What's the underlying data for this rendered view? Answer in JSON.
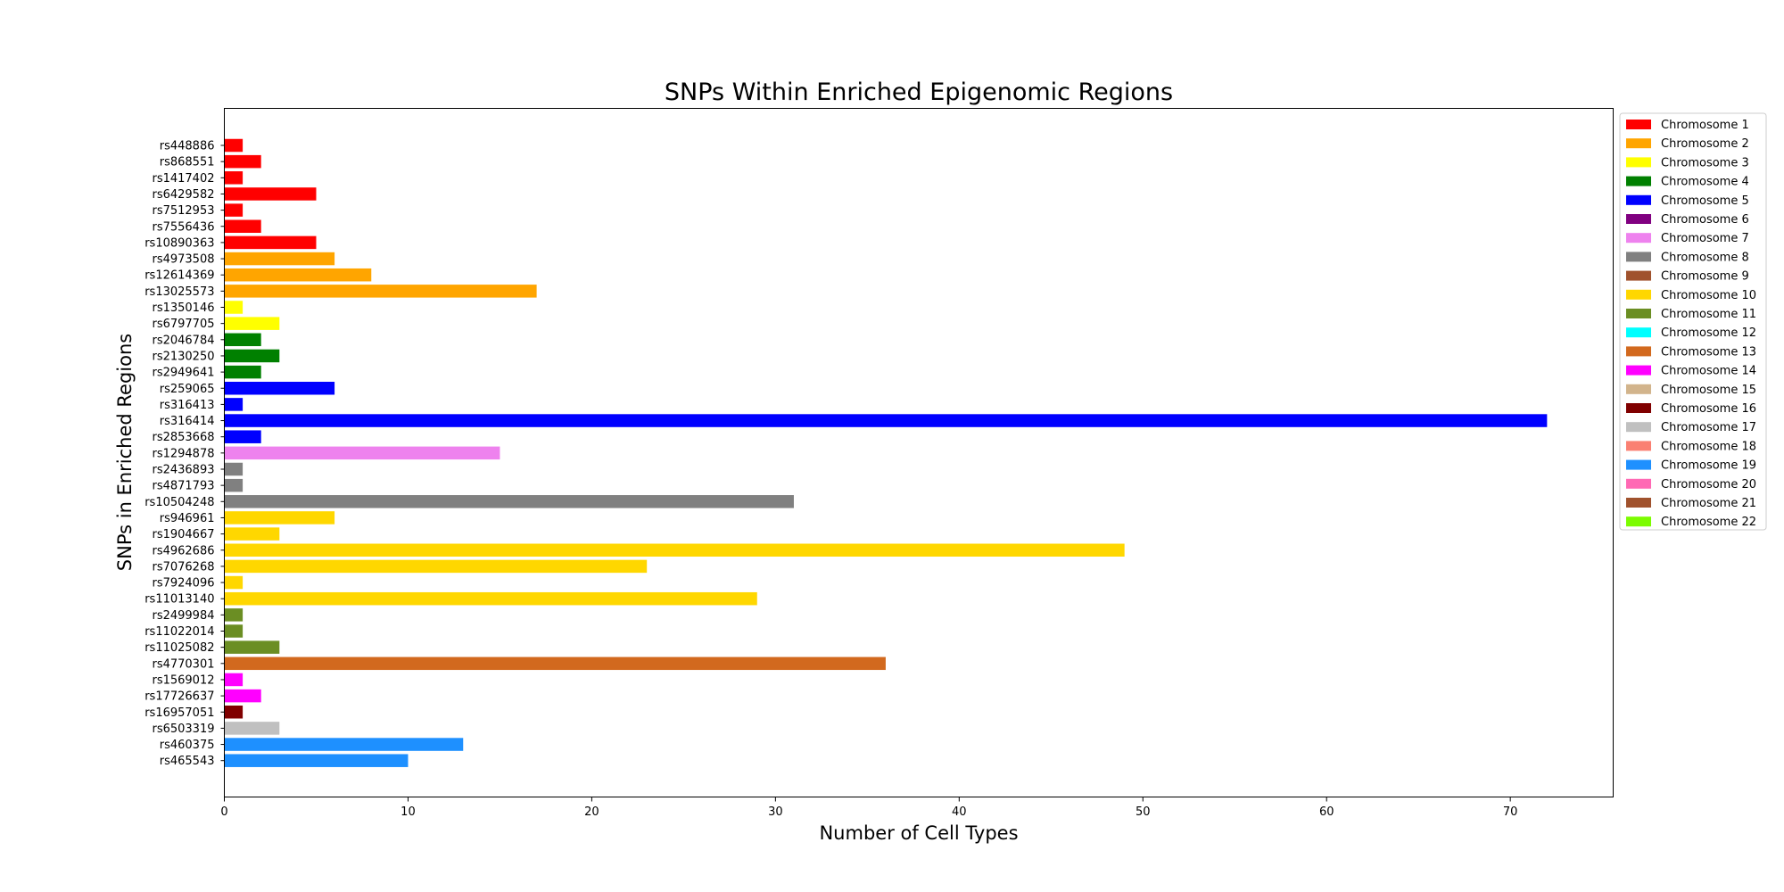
{
  "chart_data": {
    "type": "bar",
    "orientation": "horizontal",
    "title": "SNPs Within Enriched Epigenomic Regions",
    "xlabel": "Number of Cell Types",
    "ylabel": "SNPs in Enriched Regions",
    "xlim": [
      0,
      75.6
    ],
    "xticks": [
      0,
      10,
      20,
      30,
      40,
      50,
      60,
      70
    ],
    "grid": false,
    "legend_position": "outside-right",
    "legend": [
      {
        "label": "Chromosome 1",
        "color": "#ff0000"
      },
      {
        "label": "Chromosome 2",
        "color": "#ffa500"
      },
      {
        "label": "Chromosome 3",
        "color": "#ffff00"
      },
      {
        "label": "Chromosome 4",
        "color": "#008000"
      },
      {
        "label": "Chromosome 5",
        "color": "#0000ff"
      },
      {
        "label": "Chromosome 6",
        "color": "#800080"
      },
      {
        "label": "Chromosome 7",
        "color": "#ee82ee"
      },
      {
        "label": "Chromosome 8",
        "color": "#808080"
      },
      {
        "label": "Chromosome 9",
        "color": "#a0522d"
      },
      {
        "label": "Chromosome 10",
        "color": "#ffd700"
      },
      {
        "label": "Chromosome 11",
        "color": "#6b8e23"
      },
      {
        "label": "Chromosome 12",
        "color": "#00ffff"
      },
      {
        "label": "Chromosome 13",
        "color": "#d2691e"
      },
      {
        "label": "Chromosome 14",
        "color": "#ff00ff"
      },
      {
        "label": "Chromosome 15",
        "color": "#d2b48c"
      },
      {
        "label": "Chromosome 16",
        "color": "#800000"
      },
      {
        "label": "Chromosome 17",
        "color": "#c0c0c0"
      },
      {
        "label": "Chromosome 18",
        "color": "#fa8072"
      },
      {
        "label": "Chromosome 19",
        "color": "#1e90ff"
      },
      {
        "label": "Chromosome 20",
        "color": "#ff69b4"
      },
      {
        "label": "Chromosome 21",
        "color": "#a0522d"
      },
      {
        "label": "Chromosome 22",
        "color": "#7cfc00"
      }
    ],
    "bars": [
      {
        "snp": "rs448886",
        "value": 1,
        "chromosome": 1
      },
      {
        "snp": "rs868551",
        "value": 2,
        "chromosome": 1
      },
      {
        "snp": "rs1417402",
        "value": 1,
        "chromosome": 1
      },
      {
        "snp": "rs6429582",
        "value": 5,
        "chromosome": 1
      },
      {
        "snp": "rs7512953",
        "value": 1,
        "chromosome": 1
      },
      {
        "snp": "rs7556436",
        "value": 2,
        "chromosome": 1
      },
      {
        "snp": "rs10890363",
        "value": 5,
        "chromosome": 1
      },
      {
        "snp": "rs4973508",
        "value": 6,
        "chromosome": 2
      },
      {
        "snp": "rs12614369",
        "value": 8,
        "chromosome": 2
      },
      {
        "snp": "rs13025573",
        "value": 17,
        "chromosome": 2
      },
      {
        "snp": "rs1350146",
        "value": 1,
        "chromosome": 3
      },
      {
        "snp": "rs6797705",
        "value": 3,
        "chromosome": 3
      },
      {
        "snp": "rs2046784",
        "value": 2,
        "chromosome": 4
      },
      {
        "snp": "rs2130250",
        "value": 3,
        "chromosome": 4
      },
      {
        "snp": "rs2949641",
        "value": 2,
        "chromosome": 4
      },
      {
        "snp": "rs259065",
        "value": 6,
        "chromosome": 5
      },
      {
        "snp": "rs316413",
        "value": 1,
        "chromosome": 5
      },
      {
        "snp": "rs316414",
        "value": 72,
        "chromosome": 5
      },
      {
        "snp": "rs2853668",
        "value": 2,
        "chromosome": 5
      },
      {
        "snp": "rs1294878",
        "value": 15,
        "chromosome": 7
      },
      {
        "snp": "rs2436893",
        "value": 1,
        "chromosome": 8
      },
      {
        "snp": "rs4871793",
        "value": 1,
        "chromosome": 8
      },
      {
        "snp": "rs10504248",
        "value": 31,
        "chromosome": 8
      },
      {
        "snp": "rs946961",
        "value": 6,
        "chromosome": 10
      },
      {
        "snp": "rs1904667",
        "value": 3,
        "chromosome": 10
      },
      {
        "snp": "rs4962686",
        "value": 49,
        "chromosome": 10
      },
      {
        "snp": "rs7076268",
        "value": 23,
        "chromosome": 10
      },
      {
        "snp": "rs7924096",
        "value": 1,
        "chromosome": 10
      },
      {
        "snp": "rs11013140",
        "value": 29,
        "chromosome": 10
      },
      {
        "snp": "rs2499984",
        "value": 1,
        "chromosome": 11
      },
      {
        "snp": "rs11022014",
        "value": 1,
        "chromosome": 11
      },
      {
        "snp": "rs11025082",
        "value": 3,
        "chromosome": 11
      },
      {
        "snp": "rs4770301",
        "value": 36,
        "chromosome": 13
      },
      {
        "snp": "rs1569012",
        "value": 1,
        "chromosome": 14
      },
      {
        "snp": "rs17726637",
        "value": 2,
        "chromosome": 14
      },
      {
        "snp": "rs16957051",
        "value": 1,
        "chromosome": 16
      },
      {
        "snp": "rs6503319",
        "value": 3,
        "chromosome": 17
      },
      {
        "snp": "rs460375",
        "value": 13,
        "chromosome": 19
      },
      {
        "snp": "rs465543",
        "value": 10,
        "chromosome": 19
      }
    ]
  }
}
